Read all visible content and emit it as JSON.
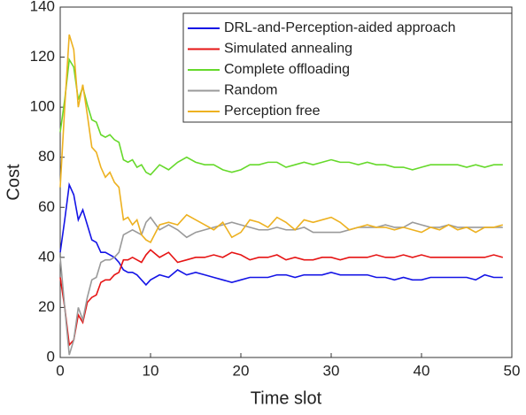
{
  "chart_data": {
    "type": "line",
    "xlabel": "Time slot",
    "ylabel": "Cost",
    "x": [
      0,
      0.5,
      1,
      1.5,
      2,
      2.5,
      3,
      3.5,
      4,
      4.5,
      5,
      5.5,
      6,
      6.5,
      7,
      7.5,
      8,
      8.5,
      9,
      9.5,
      10,
      11,
      12,
      13,
      14,
      15,
      16,
      17,
      18,
      19,
      20,
      21,
      22,
      23,
      24,
      25,
      26,
      27,
      28,
      29,
      30,
      31,
      32,
      33,
      34,
      35,
      36,
      37,
      38,
      39,
      40,
      41,
      42,
      43,
      44,
      45,
      46,
      47,
      48,
      49
    ],
    "xlim": [
      0,
      50
    ],
    "xticks": [
      0,
      10,
      20,
      30,
      40,
      50
    ],
    "ylim": [
      0,
      140
    ],
    "yticks": [
      0,
      20,
      40,
      60,
      80,
      100,
      120,
      140
    ],
    "grid": false,
    "legend": "upper right",
    "series": [
      {
        "name": "DRL-and-Perception-aided approach",
        "color": "#1414e6",
        "values": [
          42,
          55,
          69,
          65,
          55,
          59,
          53,
          47,
          46,
          42,
          42,
          41,
          40,
          38,
          35,
          34,
          34,
          33,
          31,
          29,
          31,
          33,
          32,
          35,
          33,
          34,
          33,
          32,
          31,
          30,
          31,
          32,
          32,
          32,
          33,
          33,
          32,
          33,
          33,
          33,
          34,
          33,
          33,
          33,
          33,
          32,
          32,
          31,
          32,
          31,
          31,
          32,
          32,
          32,
          32,
          32,
          31,
          33,
          32,
          32
        ]
      },
      {
        "name": "Simulated annealing",
        "color": "#e61414",
        "values": [
          32,
          20,
          5,
          7,
          17,
          14,
          22,
          24,
          25,
          30,
          31,
          31,
          33,
          34,
          39,
          39,
          40,
          39,
          38,
          41,
          43,
          40,
          42,
          38,
          39,
          40,
          40,
          41,
          40,
          42,
          41,
          39,
          40,
          40,
          41,
          39,
          40,
          39,
          39,
          40,
          40,
          39,
          40,
          40,
          40,
          41,
          40,
          40,
          41,
          40,
          41,
          40,
          40,
          40,
          40,
          40,
          40,
          40,
          41,
          40
        ]
      },
      {
        "name": "Complete offloading",
        "color": "#66d92b",
        "values": [
          90,
          103,
          119,
          116,
          103,
          108,
          101,
          95,
          94,
          89,
          88,
          89,
          87,
          86,
          79,
          78,
          79,
          76,
          77,
          74,
          73,
          77,
          75,
          78,
          80,
          78,
          77,
          77,
          75,
          74,
          75,
          77,
          77,
          78,
          78,
          76,
          77,
          78,
          77,
          78,
          79,
          78,
          78,
          77,
          78,
          77,
          77,
          76,
          76,
          75,
          76,
          77,
          77,
          77,
          77,
          76,
          77,
          76,
          77,
          77
        ]
      },
      {
        "name": "Random",
        "color": "#9a9a9a",
        "values": [
          40,
          20,
          1,
          7,
          20,
          15,
          24,
          31,
          32,
          38,
          39,
          39,
          40,
          42,
          49,
          50,
          51,
          50,
          49,
          54,
          56,
          51,
          53,
          51,
          48,
          50,
          51,
          52,
          53,
          54,
          53,
          52,
          51,
          51,
          52,
          51,
          51,
          52,
          50,
          50,
          50,
          50,
          51,
          52,
          52,
          52,
          53,
          52,
          52,
          54,
          53,
          52,
          52,
          53,
          52,
          52,
          52,
          52,
          52,
          52
        ]
      },
      {
        "name": "Perception free",
        "color": "#edb120",
        "values": [
          68,
          100,
          129,
          123,
          100,
          109,
          97,
          84,
          82,
          76,
          72,
          74,
          70,
          68,
          55,
          56,
          53,
          55,
          49,
          47,
          46,
          53,
          54,
          53,
          57,
          55,
          53,
          51,
          54,
          48,
          50,
          55,
          54,
          52,
          56,
          54,
          51,
          55,
          54,
          55,
          56,
          54,
          51,
          52,
          53,
          52,
          52,
          51,
          52,
          51,
          50,
          52,
          51,
          53,
          51,
          52,
          50,
          52,
          52,
          53
        ]
      }
    ]
  }
}
